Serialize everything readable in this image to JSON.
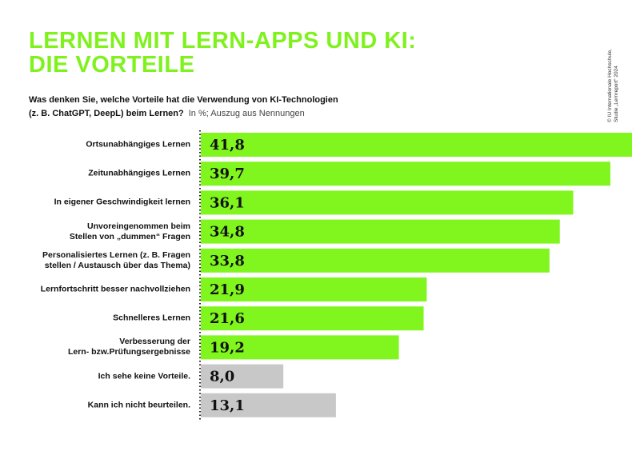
{
  "chart_data": {
    "type": "bar",
    "orientation": "horizontal",
    "title": [
      "LERNEN MIT LERN-APPS UND KI:",
      "DIE VORTEILE"
    ],
    "question": [
      "Was denken Sie, welche Vorteile hat die Verwendung von KI-Technologien",
      "(z. B. ChatGPT, DeepL) beim Lernen?"
    ],
    "note": "In %; Auszug aus Nennungen",
    "source": [
      "© IU Internationale Hochschule,",
      "Studie „Lernreport“ 2024"
    ],
    "categories": [
      "Ortsunabhängiges Lernen",
      "Zeitunabhängiges Lernen",
      "In eigener Geschwindigkeit lernen",
      "Unvoreingenommen beim\nStellen von „dummen“ Fragen",
      "Personalisiertes Lernen (z. B. Fragen\nstellen / Austausch über das Thema)",
      "Lernfortschritt besser nachvollziehen",
      "Schnelleres Lernen",
      "Verbesserung der\nLern- bzw.Prüfungsergebnisse",
      "Ich sehe keine Vorteile.",
      "Kann ich nicht beurteilen."
    ],
    "values": [
      41.8,
      39.7,
      36.1,
      34.8,
      33.8,
      21.9,
      21.6,
      19.2,
      8.0,
      13.1
    ],
    "value_labels": [
      "41,8",
      "39,7",
      "36,1",
      "34,8",
      "33,8",
      "21,9",
      "21,6",
      "19,2",
      "8,0",
      "13,1"
    ],
    "colors": [
      "#80f51e",
      "#80f51e",
      "#80f51e",
      "#80f51e",
      "#80f51e",
      "#80f51e",
      "#80f51e",
      "#80f51e",
      "#c8c8c8",
      "#c8c8c8"
    ]
  }
}
